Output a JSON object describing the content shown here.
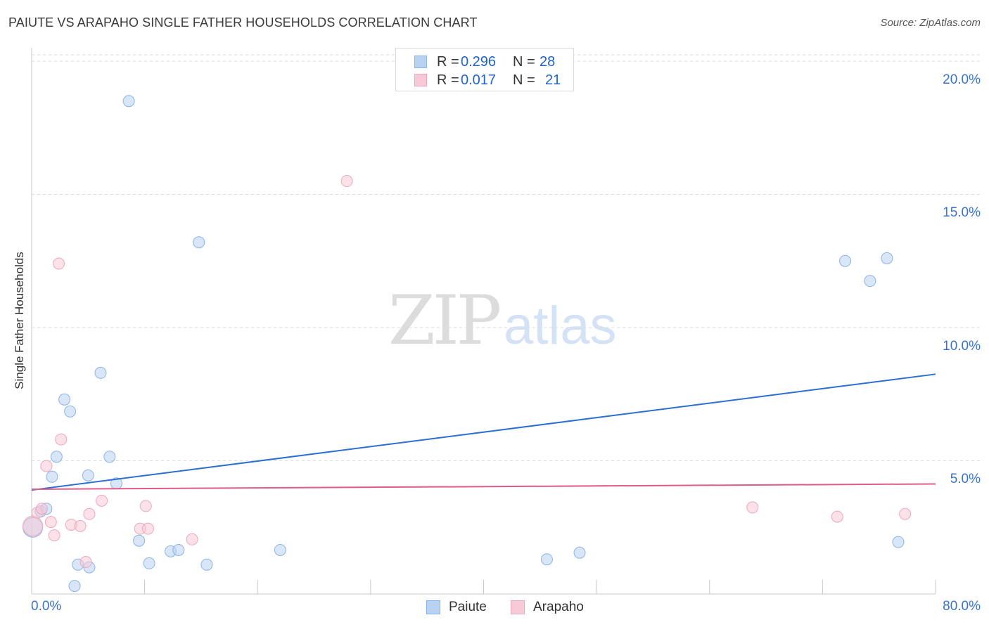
{
  "title": "PAIUTE VS ARAPAHO SINGLE FATHER HOUSEHOLDS CORRELATION CHART",
  "source": "Source: ZipAtlas.com",
  "watermark": {
    "zip": "ZIP",
    "atlas": "atlas"
  },
  "legend_top": [
    {
      "r_label": "R =",
      "r_value": "0.296",
      "n_label": "N =",
      "n_value": "28"
    },
    {
      "r_label": "R =",
      "r_value": "0.017",
      "n_label": "N =",
      "n_value": "21"
    }
  ],
  "chart_data": {
    "type": "scatter",
    "title": "PAIUTE VS ARAPAHO SINGLE FATHER HOUSEHOLDS CORRELATION CHART",
    "xlabel": "",
    "ylabel": "Single Father Households",
    "xlim": [
      0,
      80
    ],
    "ylim": [
      0,
      20.5
    ],
    "x_tick_labels": [
      "0.0%",
      "80.0%"
    ],
    "y_ticks": [
      5,
      10,
      15,
      20
    ],
    "y_tick_labels": [
      "5.0%",
      "10.0%",
      "15.0%",
      "20.0%"
    ],
    "legend_position": "bottom-center",
    "series": [
      {
        "name": "Paiute",
        "color": "#8ab4e8",
        "fill": "#b8d2f3",
        "line_color": "#2a6fd1",
        "trend": {
          "x": [
            0,
            80
          ],
          "y": [
            3.9,
            8.25
          ]
        },
        "points": [
          {
            "x": 0.1,
            "y": 2.5,
            "big": true
          },
          {
            "x": 0.8,
            "y": 3.1
          },
          {
            "x": 1.3,
            "y": 3.2
          },
          {
            "x": 1.8,
            "y": 4.4
          },
          {
            "x": 2.2,
            "y": 5.15
          },
          {
            "x": 2.9,
            "y": 7.3
          },
          {
            "x": 3.4,
            "y": 6.85
          },
          {
            "x": 4.1,
            "y": 1.1
          },
          {
            "x": 3.8,
            "y": 0.3
          },
          {
            "x": 5.0,
            "y": 4.45
          },
          {
            "x": 5.1,
            "y": 1.0
          },
          {
            "x": 6.1,
            "y": 8.3
          },
          {
            "x": 6.9,
            "y": 5.15
          },
          {
            "x": 7.5,
            "y": 4.15
          },
          {
            "x": 8.6,
            "y": 18.5
          },
          {
            "x": 9.5,
            "y": 2.0
          },
          {
            "x": 10.4,
            "y": 1.15
          },
          {
            "x": 12.3,
            "y": 1.6
          },
          {
            "x": 13.0,
            "y": 1.65
          },
          {
            "x": 14.8,
            "y": 13.2
          },
          {
            "x": 15.5,
            "y": 1.1
          },
          {
            "x": 22.0,
            "y": 1.65
          },
          {
            "x": 45.6,
            "y": 1.3
          },
          {
            "x": 48.5,
            "y": 1.55
          },
          {
            "x": 72.0,
            "y": 12.5
          },
          {
            "x": 74.2,
            "y": 11.75
          },
          {
            "x": 75.7,
            "y": 12.6
          },
          {
            "x": 76.7,
            "y": 1.95
          }
        ]
      },
      {
        "name": "Arapaho",
        "color": "#f0a6bc",
        "fill": "#f8c9d6",
        "line_color": "#e05a8a",
        "trend": {
          "x": [
            0,
            80
          ],
          "y": [
            3.93,
            4.13
          ]
        },
        "points": [
          {
            "x": 0.1,
            "y": 2.55,
            "big": true
          },
          {
            "x": 0.5,
            "y": 3.05
          },
          {
            "x": 0.9,
            "y": 3.2
          },
          {
            "x": 1.3,
            "y": 4.8
          },
          {
            "x": 1.7,
            "y": 2.7
          },
          {
            "x": 2.0,
            "y": 2.2
          },
          {
            "x": 2.4,
            "y": 12.4
          },
          {
            "x": 2.6,
            "y": 5.8
          },
          {
            "x": 3.5,
            "y": 2.6
          },
          {
            "x": 4.3,
            "y": 2.55
          },
          {
            "x": 4.8,
            "y": 1.2
          },
          {
            "x": 5.1,
            "y": 3.0
          },
          {
            "x": 6.2,
            "y": 3.5
          },
          {
            "x": 9.6,
            "y": 2.45
          },
          {
            "x": 10.1,
            "y": 3.3
          },
          {
            "x": 10.3,
            "y": 2.45
          },
          {
            "x": 14.2,
            "y": 2.05
          },
          {
            "x": 27.9,
            "y": 15.5
          },
          {
            "x": 63.8,
            "y": 3.25
          },
          {
            "x": 71.3,
            "y": 2.9
          },
          {
            "x": 77.3,
            "y": 3.0
          }
        ]
      }
    ]
  }
}
